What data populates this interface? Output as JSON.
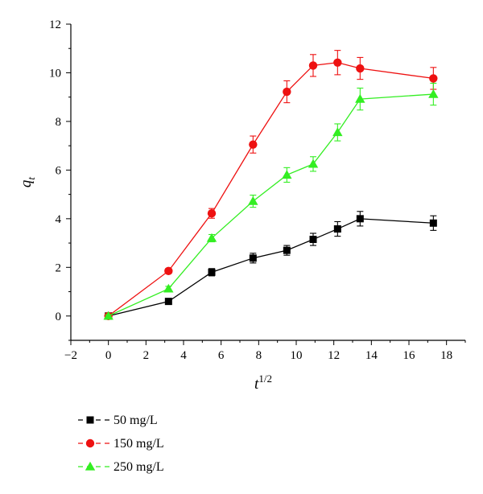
{
  "chart_data": {
    "type": "line",
    "title": "",
    "xlabel": {
      "base": "t",
      "sup": "1/2"
    },
    "ylabel": {
      "base": "q",
      "sub": "t"
    },
    "xlim": [
      -2,
      19
    ],
    "ylim": [
      -1,
      12
    ],
    "xticks": [
      -2,
      0,
      2,
      4,
      6,
      8,
      10,
      12,
      14,
      16,
      18
    ],
    "yticks": [
      0,
      2,
      4,
      6,
      8,
      10,
      12
    ],
    "grid": false,
    "legend": "bottom-left",
    "series": [
      {
        "name": "50 mg/L",
        "color": "#000000",
        "marker": "square",
        "points": [
          {
            "x": 0,
            "y": 0,
            "err": 0.05
          },
          {
            "x": 3.2,
            "y": 0.6,
            "err": 0.05
          },
          {
            "x": 5.5,
            "y": 1.8,
            "err": 0.15
          },
          {
            "x": 7.7,
            "y": 2.38,
            "err": 0.2
          },
          {
            "x": 9.5,
            "y": 2.7,
            "err": 0.2
          },
          {
            "x": 10.9,
            "y": 3.15,
            "err": 0.25
          },
          {
            "x": 12.2,
            "y": 3.58,
            "err": 0.3
          },
          {
            "x": 13.4,
            "y": 4.0,
            "err": 0.3
          },
          {
            "x": 17.3,
            "y": 3.82,
            "err": 0.3
          }
        ]
      },
      {
        "name": "150 mg/L",
        "color": "#ee1111",
        "marker": "circle",
        "points": [
          {
            "x": 0,
            "y": 0,
            "err": 0.05
          },
          {
            "x": 3.2,
            "y": 1.85,
            "err": 0.1
          },
          {
            "x": 5.5,
            "y": 4.22,
            "err": 0.2
          },
          {
            "x": 7.7,
            "y": 7.05,
            "err": 0.35
          },
          {
            "x": 9.5,
            "y": 9.22,
            "err": 0.45
          },
          {
            "x": 10.9,
            "y": 10.3,
            "err": 0.45
          },
          {
            "x": 12.2,
            "y": 10.42,
            "err": 0.5
          },
          {
            "x": 13.4,
            "y": 10.18,
            "err": 0.45
          },
          {
            "x": 17.3,
            "y": 9.77,
            "err": 0.45
          }
        ]
      },
      {
        "name": "250 mg/L",
        "color": "#33ee22",
        "marker": "triangle",
        "points": [
          {
            "x": 0,
            "y": 0,
            "err": 0.05
          },
          {
            "x": 3.2,
            "y": 1.12,
            "err": 0.1
          },
          {
            "x": 5.5,
            "y": 3.2,
            "err": 0.15
          },
          {
            "x": 7.7,
            "y": 4.72,
            "err": 0.25
          },
          {
            "x": 9.5,
            "y": 5.8,
            "err": 0.3
          },
          {
            "x": 10.9,
            "y": 6.25,
            "err": 0.3
          },
          {
            "x": 12.2,
            "y": 7.55,
            "err": 0.35
          },
          {
            "x": 13.4,
            "y": 8.92,
            "err": 0.45
          },
          {
            "x": 17.3,
            "y": 9.12,
            "err": 0.45
          }
        ]
      }
    ]
  }
}
